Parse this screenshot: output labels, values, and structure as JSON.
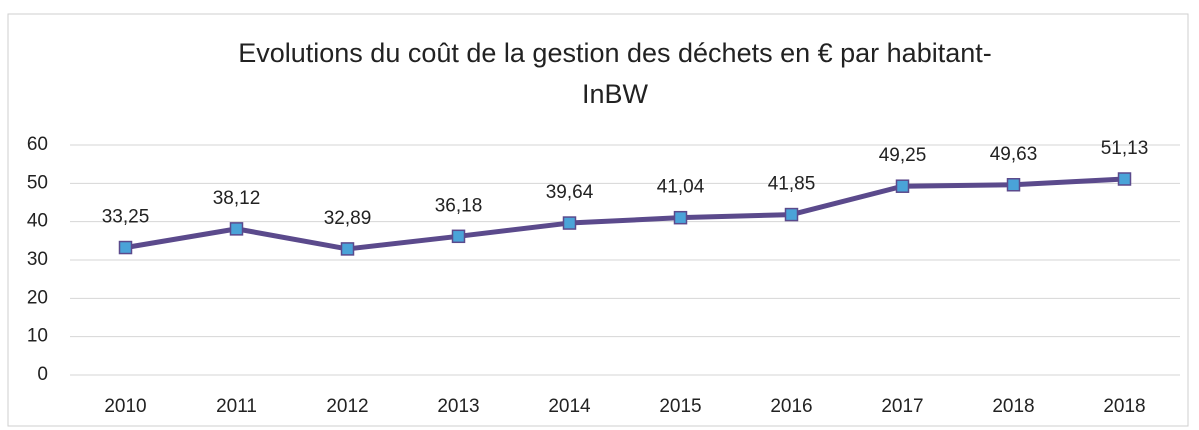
{
  "chart_data": {
    "type": "line",
    "title": [
      "Evolutions du coût de la gestion des déchets en € par habitant-",
      "InBW"
    ],
    "categories": [
      "2010",
      "2011",
      "2012",
      "2013",
      "2014",
      "2015",
      "2016",
      "2017",
      "2018",
      "2018"
    ],
    "values": [
      33.25,
      38.12,
      32.89,
      36.18,
      39.64,
      41.04,
      41.85,
      49.25,
      49.63,
      51.13
    ],
    "value_labels": [
      "33,25",
      "38,12",
      "32,89",
      "36,18",
      "39,64",
      "41,04",
      "41,85",
      "49,25",
      "49,63",
      "51,13"
    ],
    "color": "#5b4a8c",
    "marker_color": "#4aa3d8",
    "ylim": [
      0,
      60
    ],
    "yticks": [
      0,
      10,
      20,
      30,
      40,
      50,
      60
    ],
    "grid": true
  }
}
